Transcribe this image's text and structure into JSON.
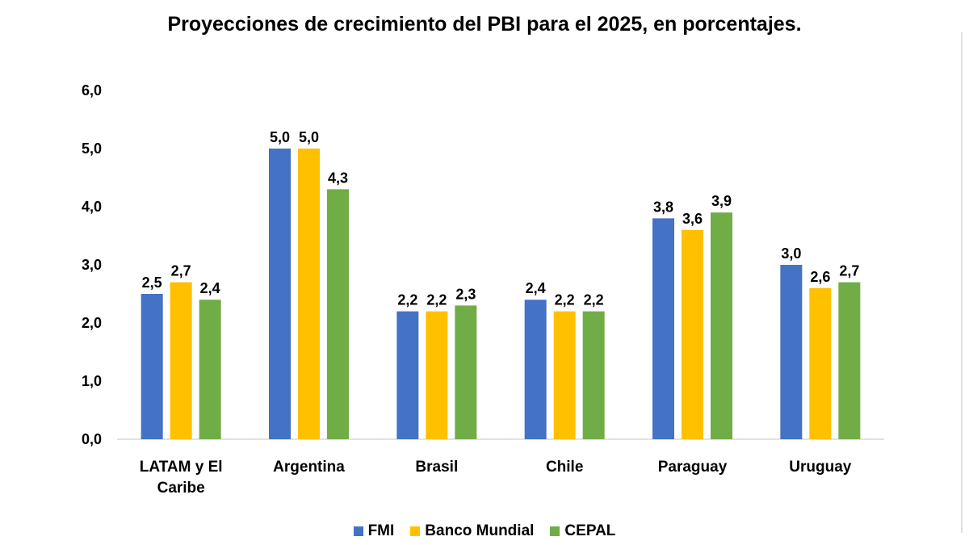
{
  "chart_data": {
    "type": "bar",
    "title": "Proyecciones de crecimiento del PBI para el 2025, en porcentajes.",
    "categories": [
      [
        "LATAM y El",
        "Caribe"
      ],
      [
        "Argentina"
      ],
      [
        "Brasil"
      ],
      [
        "Chile"
      ],
      [
        "Paraguay"
      ],
      [
        "Uruguay"
      ]
    ],
    "series": [
      {
        "name": "FMI",
        "color": "#4472C4",
        "values": [
          2.5,
          5.0,
          2.2,
          2.4,
          3.8,
          3.0
        ],
        "labels": [
          "2,5",
          "5,0",
          "2,2",
          "2,4",
          "3,8",
          "3,0"
        ]
      },
      {
        "name": "Banco Mundial",
        "color": "#FFC000",
        "values": [
          2.7,
          5.0,
          2.2,
          2.2,
          3.6,
          2.6
        ],
        "labels": [
          "2,7",
          "5,0",
          "2,2",
          "2,2",
          "3,6",
          "2,6"
        ]
      },
      {
        "name": "CEPAL",
        "color": "#70AD47",
        "values": [
          2.4,
          4.3,
          2.3,
          2.2,
          3.9,
          2.7
        ],
        "labels": [
          "2,4",
          "4,3",
          "2,3",
          "2,2",
          "3,9",
          "2,7"
        ]
      }
    ],
    "yticks": [
      0,
      1,
      2,
      3,
      4,
      5,
      6
    ],
    "ytick_labels": [
      "0,0",
      "1,0",
      "2,0",
      "3,0",
      "4,0",
      "5,0",
      "6,0"
    ],
    "ylim": [
      0,
      6
    ],
    "grid": false,
    "legend_position": "bottom"
  }
}
